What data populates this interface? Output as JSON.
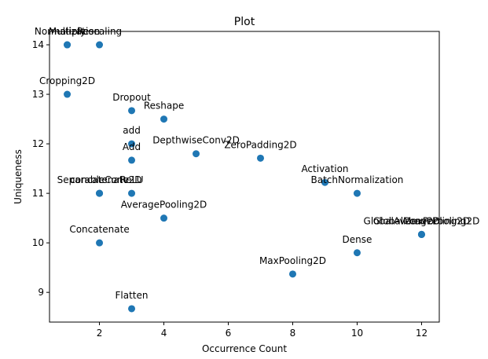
{
  "chart_data": {
    "type": "scatter",
    "title": "Plot",
    "xlabel": "Occurrence Count",
    "ylabel": "Uniqueness",
    "xlim": [
      0.45,
      12.55
    ],
    "ylim": [
      8.4,
      14.27
    ],
    "xticks": [
      2,
      4,
      6,
      8,
      10,
      12
    ],
    "yticks": [
      9,
      10,
      11,
      12,
      13,
      14
    ],
    "grid": false,
    "point_color": "#1f77b4",
    "points": [
      {
        "label": "Normalization",
        "x": 1,
        "y": 14
      },
      {
        "label": "Multiply",
        "x": 1,
        "y": 14
      },
      {
        "label": "Rescaling",
        "x": 2,
        "y": 14
      },
      {
        "label": "Cropping2D",
        "x": 1,
        "y": 13
      },
      {
        "label": "Dropout",
        "x": 3,
        "y": 12.67
      },
      {
        "label": "Reshape",
        "x": 4,
        "y": 12.5
      },
      {
        "label": "add",
        "x": 3,
        "y": 12
      },
      {
        "label": "Add",
        "x": 3,
        "y": 11.67
      },
      {
        "label": "DepthwiseConv2D",
        "x": 5,
        "y": 11.8
      },
      {
        "label": "ZeroPadding2D",
        "x": 7,
        "y": 11.71
      },
      {
        "label": "Activation",
        "x": 9,
        "y": 11.22
      },
      {
        "label": "SeparableConv2D",
        "x": 2,
        "y": 11
      },
      {
        "label": "concatenate",
        "x": 2,
        "y": 11
      },
      {
        "label": "ReLU",
        "x": 3,
        "y": 11
      },
      {
        "label": "BatchNormalization",
        "x": 10,
        "y": 11
      },
      {
        "label": "AveragePooling2D",
        "x": 4,
        "y": 10.5
      },
      {
        "label": "GlobalAveragePooling2D",
        "x": 12,
        "y": 10.17
      },
      {
        "label": "Conv2D",
        "x": 12,
        "y": 10.17
      },
      {
        "label": "GlobalMaxPooling2D",
        "x": 12,
        "y": 10.17
      },
      {
        "label": "Concatenate",
        "x": 2,
        "y": 10
      },
      {
        "label": "Dense",
        "x": 10,
        "y": 9.8
      },
      {
        "label": "MaxPooling2D",
        "x": 8,
        "y": 9.37
      },
      {
        "label": "Flatten",
        "x": 3,
        "y": 8.67
      }
    ]
  }
}
